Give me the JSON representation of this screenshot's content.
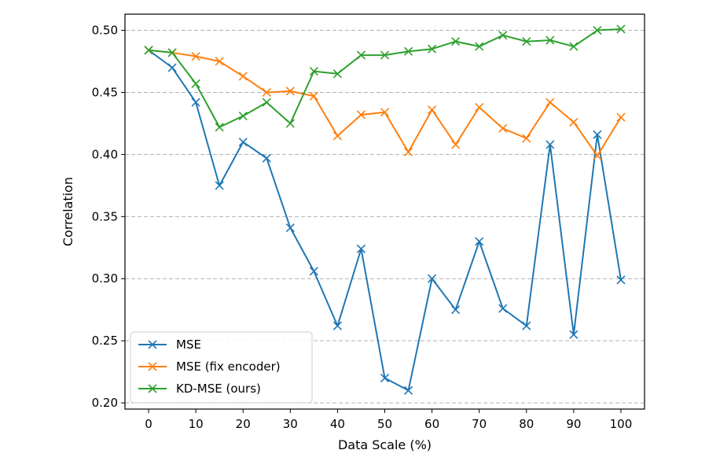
{
  "chart_data": {
    "type": "line",
    "title": "",
    "xlabel": "Data Scale (%)",
    "ylabel": "Correlation",
    "xlim": [
      -5,
      105
    ],
    "ylim": [
      0.195,
      0.513
    ],
    "x_ticks": [
      0,
      10,
      20,
      30,
      40,
      50,
      60,
      70,
      80,
      90,
      100
    ],
    "x_tick_labels": [
      "0",
      "10",
      "20",
      "30",
      "40",
      "50",
      "60",
      "70",
      "80",
      "90",
      "100"
    ],
    "y_ticks": [
      0.2,
      0.25,
      0.3,
      0.35,
      0.4,
      0.45,
      0.5
    ],
    "y_tick_labels": [
      "0.20",
      "0.25",
      "0.30",
      "0.35",
      "0.40",
      "0.45",
      "0.50"
    ],
    "grid": "horizontal dashed",
    "legend_position": "lower-left",
    "marker": "x",
    "x": [
      0,
      5,
      10,
      15,
      20,
      25,
      30,
      35,
      40,
      45,
      50,
      55,
      60,
      65,
      70,
      75,
      80,
      85,
      90,
      95,
      100
    ],
    "series": [
      {
        "name": "MSE",
        "color": "#1f77b4",
        "values": [
          0.484,
          0.47,
          0.442,
          0.375,
          0.41,
          0.397,
          0.341,
          0.306,
          0.262,
          0.324,
          0.22,
          0.21,
          0.3,
          0.275,
          0.33,
          0.276,
          0.262,
          0.408,
          0.255,
          0.416,
          0.299
        ]
      },
      {
        "name": "MSE (fix encoder)",
        "color": "#ff7f0e",
        "values": [
          0.484,
          0.482,
          0.479,
          0.475,
          0.463,
          0.45,
          0.451,
          0.447,
          0.415,
          0.432,
          0.434,
          0.402,
          0.436,
          0.408,
          0.438,
          0.421,
          0.413,
          0.442,
          0.426,
          0.399,
          0.43
        ]
      },
      {
        "name": "KD-MSE (ours)",
        "color": "#2ca02c",
        "values": [
          0.484,
          0.482,
          0.457,
          0.422,
          0.431,
          0.442,
          0.425,
          0.467,
          0.465,
          0.48,
          0.48,
          0.483,
          0.485,
          0.491,
          0.487,
          0.496,
          0.491,
          0.492,
          0.487,
          0.5,
          0.501
        ]
      }
    ]
  }
}
